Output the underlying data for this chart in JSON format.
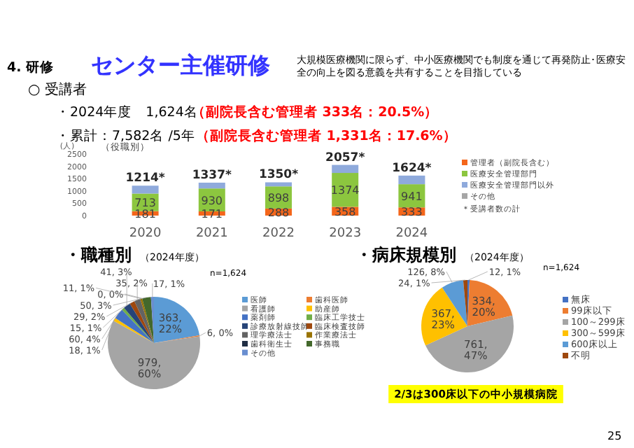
{
  "chart_data": [
    {
      "type": "other",
      "title": "センター主催研修",
      "annotations": [
        "4. 研修",
        "大規模医療機関に限らず、中小医療機関でも制度を通じて再発防止･医療安全の向上を図る意義を共有することを目指している",
        "○ 受講者",
        "・2024年度　1,624名",
        "（副院長含む管理者 333名：20.5%）",
        "・累計：7,582名 /5年",
        "（副院長含む管理者 1,331名：17.6%）",
        "25"
      ]
    },
    {
      "type": "bar",
      "stacked": true,
      "subtitle": "（役職別）",
      "ylabel": "(人)",
      "categories": [
        "2020",
        "2021",
        "2022",
        "2023",
        "2024"
      ],
      "ylim": [
        0,
        2500
      ],
      "yticks": [
        0,
        500,
        1000,
        1500,
        2000,
        2500
      ],
      "legend": "right",
      "series": [
        {
          "name": "管理者（副院長含む）",
          "color": "#f4661b",
          "values": [
            181,
            171,
            288,
            358,
            333
          ],
          "value_labels": [
            "181",
            "171",
            "288",
            "358",
            "333"
          ]
        },
        {
          "name": "医療安全管理部門",
          "color": "#8cc63f",
          "values": [
            713,
            930,
            898,
            1374,
            941
          ],
          "value_labels": [
            "713",
            "930",
            "898",
            "1374",
            "941"
          ]
        },
        {
          "name": "医療安全管理部門以外",
          "color": "#8faadc",
          "values": [
            320,
            236,
            164,
            325,
            350
          ]
        },
        {
          "name": "その他",
          "color": "#a6a6a6",
          "values": [
            null,
            null,
            null,
            null,
            null
          ]
        }
      ],
      "totals": [
        "1214*",
        "1337*",
        "1350*",
        "2057*",
        "1624*"
      ],
      "annotations": [
        "＊受講者数の計"
      ]
    },
    {
      "type": "pie",
      "title": "・職種別",
      "subtitle": "（2024年度）",
      "legend": "right",
      "annotations": [
        "n=1,624"
      ],
      "categories": [
        "医師",
        "歯科医師",
        "看護師",
        "助産師",
        "薬剤師",
        "臨床工学技士",
        "診療放射線技師",
        "臨床検査技師",
        "理学療法士",
        "作業療法士",
        "歯科衛生士",
        "事務職",
        "その他"
      ],
      "values": [
        363,
        6,
        979,
        18,
        60,
        15,
        41,
        29,
        35,
        11,
        0,
        50,
        17
      ],
      "colors": [
        "#5b9bd5",
        "#ed7d31",
        "#a5a5a5",
        "#ffc000",
        "#4472c4",
        "#70ad47",
        "#264478",
        "#9e480e",
        "#636363",
        "#997300",
        "#1f2d44",
        "#43682b",
        "#698ed0"
      ],
      "value_labels": [
        "363, 22%",
        "6, 0%",
        "979, 60%",
        "18, 1%",
        "60, 4%",
        "15, 1%",
        "41, 3%",
        "29, 2%",
        "35, 2%",
        "11, 1%",
        "0, 0%",
        "50, 3%",
        "17, 1%"
      ]
    },
    {
      "type": "pie",
      "title": "・病床規模別",
      "subtitle": "（2024年度）",
      "legend": "right",
      "annotations": [
        "n=1,624",
        "2/3は300床以下の中小規模病院"
      ],
      "categories": [
        "無床",
        "99床以下",
        "100～299床",
        "300～599床",
        "600床以上",
        "不明"
      ],
      "values": [
        12,
        334,
        761,
        367,
        126,
        24
      ],
      "colors": [
        "#4472c4",
        "#ed7d31",
        "#a5a5a5",
        "#ffc000",
        "#5b9bd5",
        "#9e480e"
      ],
      "value_labels": [
        "12, 1%",
        "334, 20%",
        "761, 47%",
        "367, 23%",
        "126, 8%",
        "24, 1%"
      ]
    }
  ]
}
